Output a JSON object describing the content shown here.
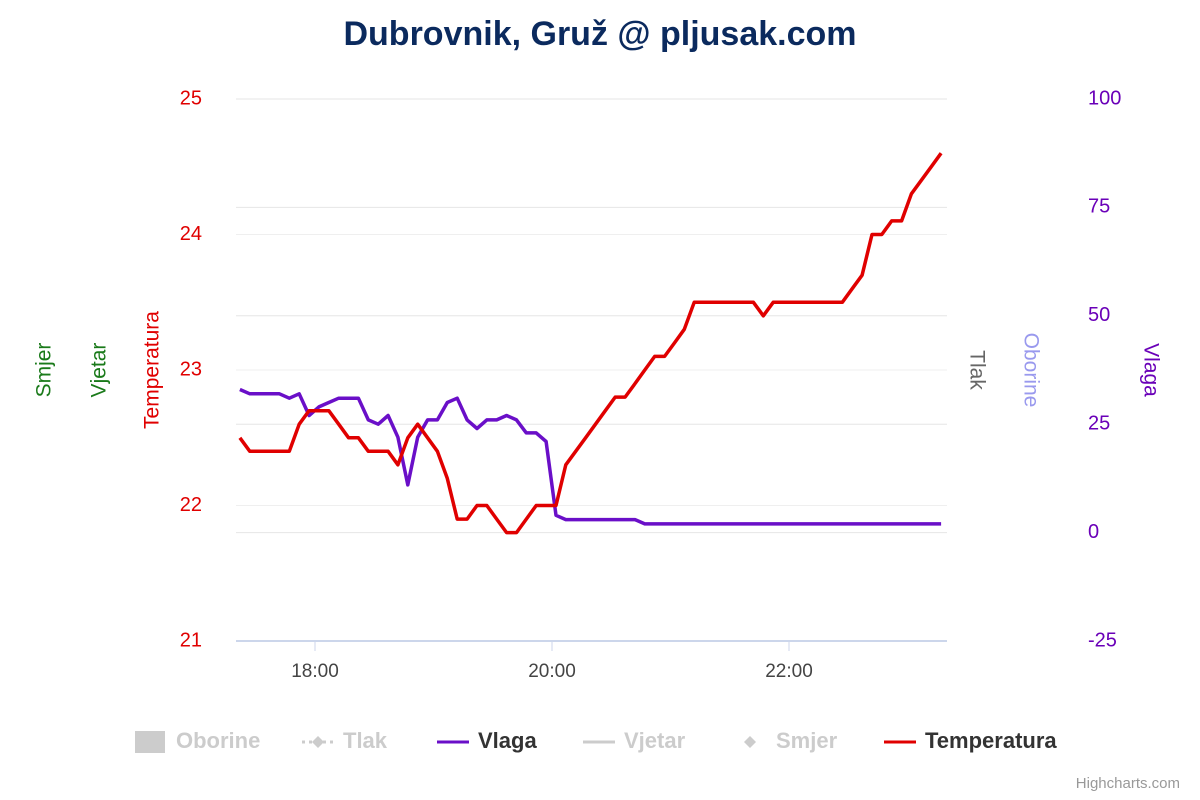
{
  "chart_data": {
    "type": "line",
    "title": "Dubrovnik, Gruž @ pljusak.com",
    "x": [
      "17:22",
      "17:27",
      "17:32",
      "17:37",
      "17:42",
      "17:47",
      "17:52",
      "17:57",
      "18:02",
      "18:07",
      "18:12",
      "18:17",
      "18:22",
      "18:27",
      "18:32",
      "18:37",
      "18:42",
      "18:47",
      "18:52",
      "18:57",
      "19:02",
      "19:07",
      "19:12",
      "19:17",
      "19:22",
      "19:27",
      "19:32",
      "19:37",
      "19:42",
      "19:47",
      "19:52",
      "19:57",
      "20:02",
      "20:07",
      "20:12",
      "20:17",
      "20:22",
      "20:27",
      "20:32",
      "20:37",
      "20:42",
      "20:47",
      "20:52",
      "20:57",
      "21:02",
      "21:07",
      "21:12",
      "21:17",
      "21:22",
      "21:27",
      "21:32",
      "21:37",
      "21:42",
      "21:47",
      "21:52",
      "21:57",
      "22:02",
      "22:07",
      "22:12",
      "22:17",
      "22:22",
      "22:27",
      "22:32",
      "22:37",
      "22:42",
      "22:47",
      "22:52",
      "22:57",
      "23:02",
      "23:07",
      "23:12",
      "23:17"
    ],
    "xlim": [
      "17:20",
      "23:20"
    ],
    "xticks": [
      "18:00",
      "20:00",
      "22:00"
    ],
    "ylim": [
      21,
      25
    ],
    "yticks": [
      21,
      22,
      23,
      24,
      25
    ],
    "y2lim": [
      -25,
      100
    ],
    "y2ticks": [
      -25,
      0,
      25,
      50,
      75,
      100
    ],
    "grid": true,
    "axis_titles": [
      {
        "text": "Smjer",
        "side": "left",
        "color": "#1a7a1a"
      },
      {
        "text": "Vjetar",
        "side": "left",
        "color": "#1a7a1a"
      },
      {
        "text": "Temperatura",
        "side": "left",
        "color": "#e00000"
      },
      {
        "text": "Tlak",
        "side": "right",
        "color": "#666666"
      },
      {
        "text": "Oborine",
        "side": "right",
        "color": "#9999ee"
      },
      {
        "text": "Vlaga",
        "side": "right",
        "color": "#6a00b8"
      }
    ],
    "series": [
      {
        "name": "Oborine",
        "visible": false
      },
      {
        "name": "Tlak",
        "visible": false
      },
      {
        "name": "Vlaga",
        "visible": true,
        "color": "#6a0fc8",
        "axis": "y2",
        "values": [
          33,
          32,
          32,
          32,
          32,
          31,
          32,
          27,
          29,
          30,
          31,
          31,
          31,
          26,
          25,
          27,
          22,
          11,
          22,
          26,
          26,
          30,
          31,
          26,
          24,
          26,
          26,
          27,
          26,
          23,
          23,
          21,
          4,
          3,
          3,
          3,
          3,
          3,
          3,
          3,
          3,
          2,
          2,
          2,
          2,
          2,
          2,
          2,
          2,
          2,
          2,
          2,
          2,
          2,
          2,
          2,
          2,
          2,
          2,
          2,
          2,
          2,
          2,
          2,
          2,
          2,
          2,
          2,
          2,
          2,
          2,
          2
        ]
      },
      {
        "name": "Vjetar",
        "visible": false
      },
      {
        "name": "Smjer",
        "visible": false
      },
      {
        "name": "Temperatura",
        "visible": true,
        "color": "#e00000",
        "values": [
          22.5,
          22.4,
          22.4,
          22.4,
          22.4,
          22.4,
          22.6,
          22.7,
          22.7,
          22.7,
          22.6,
          22.5,
          22.5,
          22.4,
          22.4,
          22.4,
          22.3,
          22.5,
          22.6,
          22.5,
          22.4,
          22.2,
          21.9,
          21.9,
          22.0,
          22.0,
          21.9,
          21.8,
          21.8,
          21.9,
          22.0,
          22.0,
          22.0,
          22.3,
          22.4,
          22.5,
          22.6,
          22.7,
          22.8,
          22.8,
          22.9,
          23.0,
          23.1,
          23.1,
          23.2,
          23.3,
          23.5,
          23.5,
          23.5,
          23.5,
          23.5,
          23.5,
          23.5,
          23.4,
          23.5,
          23.5,
          23.5,
          23.5,
          23.5,
          23.5,
          23.5,
          23.5,
          23.6,
          23.7,
          24.0,
          24.0,
          24.1,
          24.1,
          24.3,
          24.4,
          24.5,
          24.6
        ]
      }
    ],
    "credits": "Highcharts.com"
  }
}
